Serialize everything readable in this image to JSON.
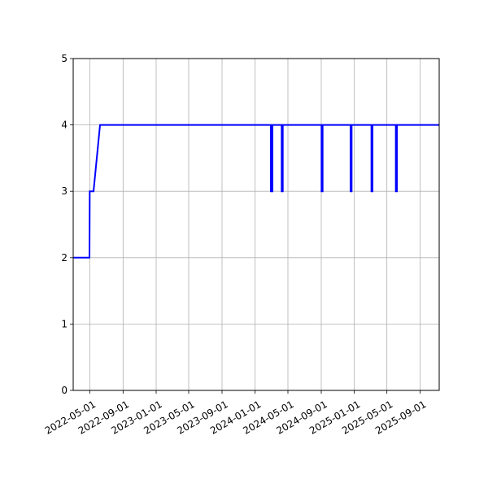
{
  "chart_data": {
    "type": "line",
    "title": "",
    "xlabel": "",
    "ylabel": "",
    "grid": true,
    "legend": "none",
    "line_color": "#0000ff",
    "grid_color": "#b0b0b0",
    "xlim": [
      "2022-03-01",
      "2025-11-10"
    ],
    "ylim": [
      0,
      5
    ],
    "x_ticks": [
      "2022-05-01",
      "2022-09-01",
      "2023-01-01",
      "2023-05-01",
      "2023-09-01",
      "2024-01-01",
      "2024-05-01",
      "2024-09-01",
      "2025-01-01",
      "2025-05-01",
      "2025-09-01"
    ],
    "y_ticks": [
      0,
      1,
      2,
      3,
      4,
      5
    ],
    "series": [
      {
        "x": [
          "2022-03-01",
          "2022-04-30",
          "2022-05-01",
          "2022-05-15",
          "2022-06-08",
          "2024-02-28",
          "2024-02-28",
          "2024-03-05",
          "2024-03-05",
          "2024-04-08",
          "2024-04-08",
          "2024-04-12",
          "2024-04-12",
          "2024-09-02",
          "2024-09-02",
          "2024-09-06",
          "2024-09-06",
          "2024-12-18",
          "2024-12-18",
          "2024-12-22",
          "2024-12-22",
          "2025-03-05",
          "2025-03-05",
          "2025-03-09",
          "2025-03-09",
          "2025-06-03",
          "2025-06-03",
          "2025-06-07",
          "2025-06-07",
          "2025-11-10"
        ],
        "values": [
          2,
          2,
          3,
          3,
          4,
          4,
          3,
          3,
          4,
          4,
          3,
          3,
          4,
          4,
          3,
          3,
          4,
          4,
          3,
          3,
          4,
          4,
          3,
          3,
          4,
          4,
          3,
          3,
          4,
          4
        ]
      }
    ]
  }
}
